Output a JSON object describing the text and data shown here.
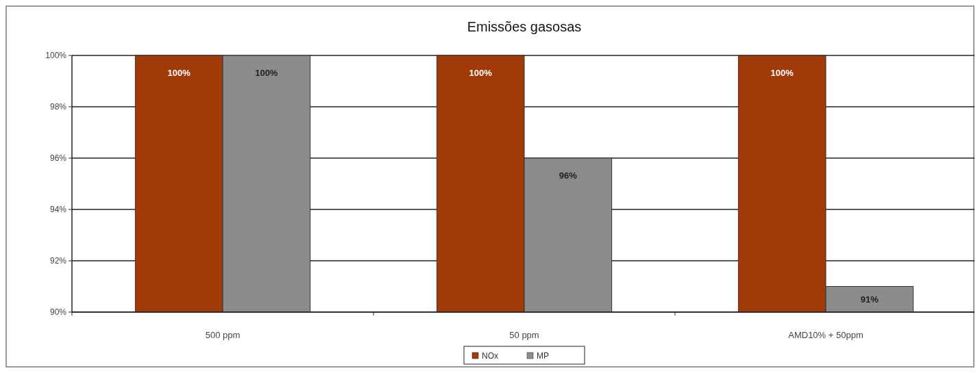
{
  "chart_data": {
    "type": "bar",
    "title": "Emissões gasosas",
    "categories": [
      "500 ppm",
      "50 ppm",
      "AMD10% + 50ppm"
    ],
    "series": [
      {
        "name": "NOx",
        "color": "#a03a08",
        "values": [
          100,
          100,
          100
        ],
        "value_labels": [
          "100%",
          "100%",
          "100%"
        ]
      },
      {
        "name": "MP",
        "color": "#8c8c8c",
        "values": [
          100,
          96,
          91
        ],
        "value_labels": [
          "100%",
          "96%",
          "91%"
        ]
      }
    ],
    "ylim": [
      90,
      100
    ],
    "yticks": [
      {
        "value": 90,
        "label": "90%"
      },
      {
        "value": 92,
        "label": "92%"
      },
      {
        "value": 94,
        "label": "94%"
      },
      {
        "value": 96,
        "label": "96%"
      },
      {
        "value": 98,
        "label": "98%"
      },
      {
        "value": 100,
        "label": "100%"
      }
    ],
    "grid": "y",
    "legend": "bottom"
  }
}
